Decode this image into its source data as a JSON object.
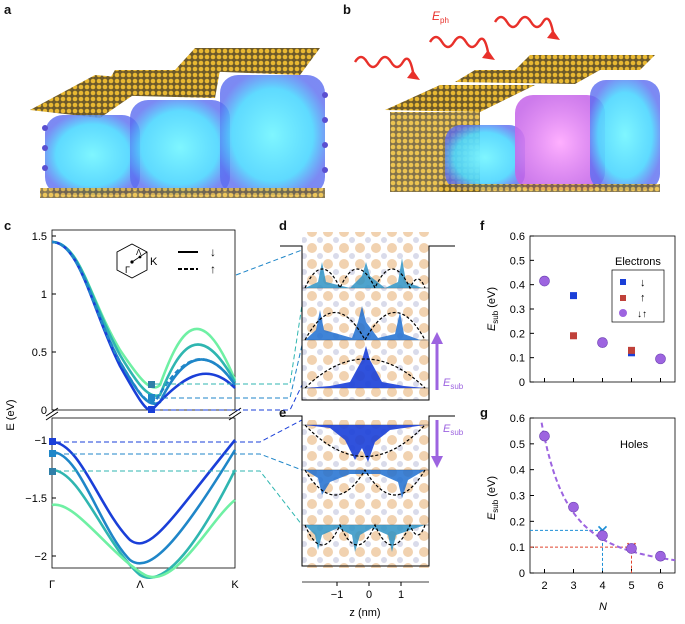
{
  "panels": {
    "a": "a",
    "b": "b",
    "c": "c",
    "d": "d",
    "e": "e",
    "f": "f",
    "g": "g"
  },
  "labels": {
    "eph": "E",
    "eph_sub": "ph",
    "esub_d": "E",
    "esub_d_sub": "sub",
    "esub_e": "E",
    "esub_e_sub": "sub",
    "bz_gamma": "Γ",
    "bz_lambda": "Λ",
    "bz_k": "K",
    "axis_c_y": "E (eV)",
    "axis_z": "z (nm)",
    "axis_f_y_main": "E",
    "axis_f_y_sub": "sub",
    "axis_f_y_unit": " (eV)",
    "axis_g_y_main": "E",
    "axis_g_y_sub": "sub",
    "axis_g_y_unit": " (eV)",
    "axis_g_x": "N",
    "electrons": "Electrons",
    "holes": "Holes"
  },
  "chart_data": [
    {
      "panel": "c",
      "type": "line",
      "xlabel": "",
      "ylabel": "E (eV)",
      "x_ticks": [
        "Γ",
        "Λ",
        "K"
      ],
      "y_ticks_upper": [
        "0",
        "0.5",
        "1",
        "1.5"
      ],
      "y_ticks_lower": [
        "−2",
        "−1.5",
        "−1"
      ],
      "legend": [
        {
          "style": "solid",
          "spin": "↓"
        },
        {
          "style": "dashed",
          "spin": "↑"
        }
      ],
      "conduction_minima_eV": [
        0.0,
        0.1,
        0.21
      ],
      "valence_maxima_eV": [
        -1.02,
        -1.1,
        -1.28
      ]
    },
    {
      "panel": "f",
      "type": "scatter",
      "title": "Electrons",
      "xlim": [
        1.5,
        6.5
      ],
      "ylim": [
        0,
        0.6
      ],
      "y_ticks": [
        "0",
        "0.1",
        "0.2",
        "0.3",
        "0.4",
        "0.5",
        "0.6"
      ],
      "legend": [
        "↓",
        "↑",
        "↓↑"
      ],
      "series": [
        {
          "name": "↓",
          "color": "#1a3fd8",
          "marker": "square",
          "x": [
            3,
            5
          ],
          "y": [
            0.355,
            0.12
          ]
        },
        {
          "name": "↑",
          "color": "#c0413a",
          "marker": "square",
          "x": [
            3,
            5
          ],
          "y": [
            0.19,
            0.13
          ]
        },
        {
          "name": "↓↑",
          "color": "#9d64e0",
          "marker": "circle",
          "x": [
            2,
            4,
            6
          ],
          "y": [
            0.415,
            0.162,
            0.095
          ]
        }
      ]
    },
    {
      "panel": "g",
      "type": "scatter",
      "title": "Holes",
      "xlabel": "N",
      "xlim": [
        1.5,
        6.5
      ],
      "ylim": [
        0,
        0.6
      ],
      "x_ticks": [
        "2",
        "3",
        "4",
        "5",
        "6"
      ],
      "y_ticks": [
        "0",
        "0.1",
        "0.2",
        "0.3",
        "0.4",
        "0.5",
        "0.6"
      ],
      "series": [
        {
          "color": "#9d64e0",
          "marker": "circle",
          "x": [
            2,
            3,
            4,
            5,
            6
          ],
          "y": [
            0.53,
            0.255,
            0.145,
            0.095,
            0.065
          ]
        }
      ],
      "fit_curve": true,
      "guide_lines": [
        {
          "x": 4,
          "y": 0.165,
          "color": "#1e8fd6"
        },
        {
          "x": 5,
          "y": 0.1,
          "color": "#e0452e"
        }
      ]
    }
  ]
}
